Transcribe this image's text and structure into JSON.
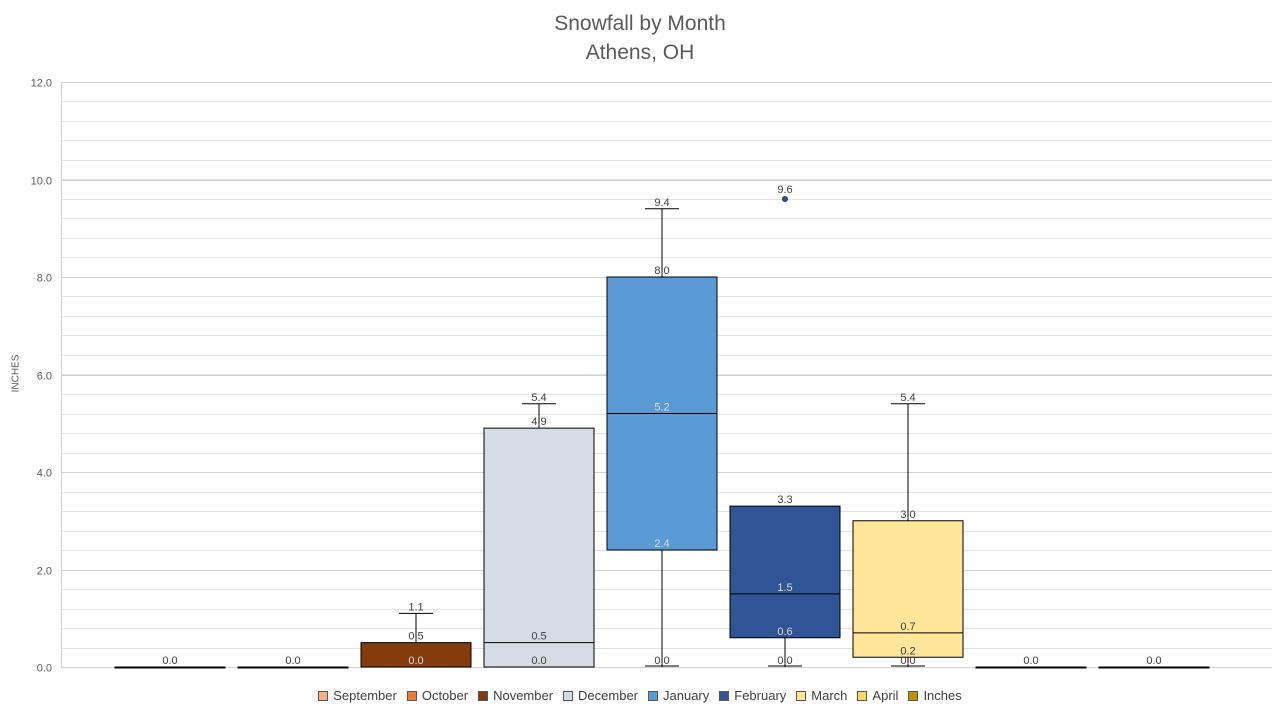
{
  "chart_data": {
    "type": "boxplot",
    "title": "Snowfall by Month",
    "subtitle": "Athens, OH",
    "ylabel": "INCHES",
    "ylim": [
      0,
      12
    ],
    "yticks": [
      "0.0",
      "2.0",
      "4.0",
      "6.0",
      "8.0",
      "10.0",
      "12.0"
    ],
    "grid": true,
    "legend_position": "bottom",
    "series": [
      {
        "name": "September",
        "color": "#f4b183",
        "min": 0.0,
        "q1": 0.0,
        "median": 0.0,
        "q3": 0.0,
        "max": 0.0,
        "labels": [
          "0.0"
        ],
        "outliers": []
      },
      {
        "name": "October",
        "color": "#ed7d31",
        "min": 0.0,
        "q1": 0.0,
        "median": 0.0,
        "q3": 0.0,
        "max": 0.0,
        "labels": [
          "0.0"
        ],
        "outliers": []
      },
      {
        "name": "November",
        "color": "#843c0c",
        "min": 0.0,
        "q1": 0.0,
        "median": 0.0,
        "q3": 0.5,
        "max": 1.1,
        "labels": [
          "1.1",
          "0.5",
          "0.0"
        ],
        "outliers": []
      },
      {
        "name": "December",
        "color": "#d6dce4",
        "min": 0.0,
        "q1": 0.0,
        "median": 0.5,
        "q3": 4.9,
        "max": 5.4,
        "labels": [
          "5.4",
          "4.9",
          "0.5",
          "0.0"
        ],
        "outliers": []
      },
      {
        "name": "January",
        "color": "#5b9bd5",
        "min": 0.0,
        "q1": 2.4,
        "median": 5.2,
        "q3": 8.0,
        "max": 9.4,
        "labels": [
          "9.4",
          "8.0",
          "5.2",
          "2.4",
          "0.0"
        ],
        "outliers": []
      },
      {
        "name": "February",
        "color": "#2f5597",
        "min": 0.0,
        "q1": 0.6,
        "median": 1.5,
        "q3": 3.3,
        "max": 3.3,
        "labels": [
          "3.3",
          "1.5",
          "0.6",
          "0.0"
        ],
        "outliers": [
          9.6
        ],
        "outlier_labels": [
          "9.6"
        ]
      },
      {
        "name": "March",
        "color": "#ffe699",
        "min": 0.0,
        "q1": 0.2,
        "median": 0.7,
        "q3": 3.0,
        "max": 5.4,
        "labels": [
          "5.4",
          "3.0",
          "0.7",
          "0.2",
          "0.0"
        ],
        "outliers": []
      },
      {
        "name": "April",
        "color": "#ffd966",
        "min": 0.0,
        "q1": 0.0,
        "median": 0.0,
        "q3": 0.0,
        "max": 0.0,
        "labels": [
          "0.0"
        ],
        "outliers": []
      },
      {
        "name": "Inches",
        "color": "#bf9000",
        "min": 0.0,
        "q1": 0.0,
        "median": 0.0,
        "q3": 0.0,
        "max": 0.0,
        "labels": [
          "0.0"
        ],
        "outliers": []
      }
    ]
  }
}
